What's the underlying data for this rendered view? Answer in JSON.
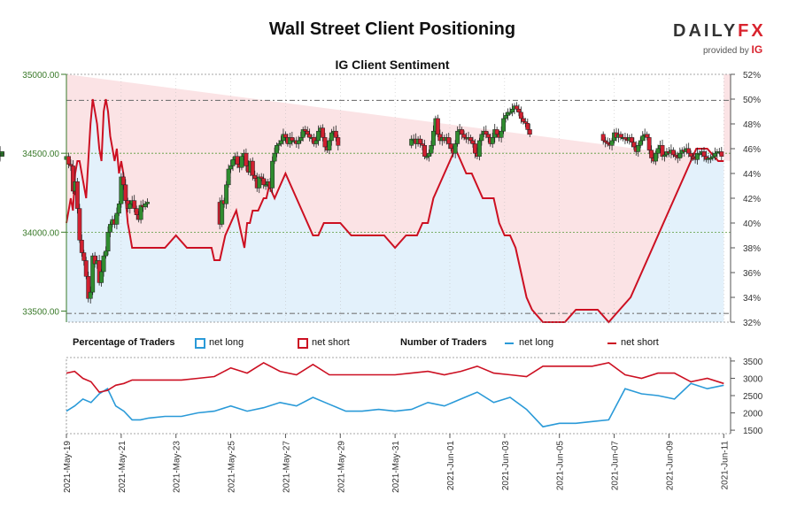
{
  "title": "Wall Street Client Positioning",
  "logo": {
    "brand_main": "DAILY",
    "brand_fx": "FX",
    "provided_by": "provided by",
    "provider": "IG"
  },
  "chart_data": [
    {
      "type": "candlestick",
      "title": "IG Client Sentiment",
      "left_axis": {
        "ticks": [
          33500,
          34000,
          34500,
          35000
        ],
        "tick_labels": [
          "33500.00",
          "34000.00",
          "34500.00",
          "35000.00"
        ],
        "range": [
          33430,
          35000
        ]
      },
      "right_axis": {
        "ticks": [
          32,
          34,
          36,
          38,
          40,
          42,
          44,
          46,
          48,
          50,
          52
        ],
        "tick_labels": [
          "32%",
          "34%",
          "36%",
          "38%",
          "40%",
          "42%",
          "44%",
          "46%",
          "48%",
          "50%",
          "52%"
        ],
        "range": [
          32,
          52
        ]
      },
      "colors": {
        "long_fill": "#e3f1fb",
        "short_fill": "#fbe3e5",
        "up": "#2f8c2f",
        "down": "#d02030",
        "net_short": "#cc1022",
        "net_long": "#2a9ad8"
      },
      "candles_day_positions": [
        0,
        0.08,
        0.16,
        0.24,
        0.32,
        0.4,
        0.48,
        0.56,
        0.64,
        0.72,
        0.8,
        0.88,
        0.96,
        1.04,
        1.12,
        1.2,
        1.28,
        1.36,
        1.44,
        1.52,
        1.6,
        1.68,
        1.76,
        1.84,
        1.92,
        2.0,
        2.08,
        2.16,
        2.24,
        2.32,
        2.4,
        2.48,
        2.56,
        2.64,
        2.72,
        2.8,
        2.88,
        2.96,
        5.6,
        5.68,
        5.76,
        5.84,
        5.92,
        6.0,
        6.08,
        6.16,
        6.24,
        6.32,
        6.4,
        6.48,
        6.56,
        6.64,
        6.72,
        6.8,
        6.88,
        6.96,
        7.04,
        7.12,
        7.2,
        7.28,
        7.36,
        7.44,
        7.52,
        7.6,
        7.68,
        7.76,
        7.84,
        7.92,
        8.0,
        8.08,
        8.16,
        8.24,
        8.32,
        8.4,
        8.48,
        8.56,
        8.64,
        8.72,
        8.8,
        8.88,
        8.96,
        9.04,
        9.12,
        9.2,
        9.28,
        9.36,
        9.44,
        9.52,
        9.6,
        9.68,
        9.76,
        9.84,
        9.92,
        12.6,
        12.68,
        12.76,
        12.84,
        12.92,
        13.0,
        13.08,
        13.16,
        13.24,
        13.32,
        13.4,
        13.48,
        13.56,
        13.64,
        13.72,
        13.8,
        13.88,
        13.96,
        14.04,
        14.12,
        14.2,
        14.28,
        14.36,
        14.44,
        14.52,
        14.6,
        14.68,
        14.76,
        14.84,
        14.92,
        15.0,
        15.08,
        15.16,
        15.24,
        15.32,
        15.4,
        15.48,
        15.56,
        15.64,
        15.72,
        15.8,
        15.88,
        15.96,
        16.04,
        16.12,
        16.2,
        16.28,
        16.36,
        16.44,
        16.52,
        16.6,
        16.68,
        16.76,
        16.84,
        16.92,
        19.6,
        19.68,
        19.76,
        19.84,
        19.92,
        20.0,
        20.08,
        20.16,
        20.24,
        20.32,
        20.4,
        20.48,
        20.56,
        20.64,
        20.72,
        20.8,
        20.88,
        20.96,
        21.04,
        21.12,
        21.2,
        21.28,
        21.36,
        21.44,
        21.52,
        21.6,
        21.68,
        21.76,
        21.84,
        21.92,
        22.0,
        22.08,
        22.16,
        22.24,
        22.32,
        22.4,
        22.48,
        22.56,
        22.64,
        22.72,
        22.8,
        22.88,
        22.96,
        23.04,
        23.12,
        23.2,
        23.28,
        23.36,
        23.44,
        23.52,
        23.6,
        23.68,
        23.76,
        23.84,
        23.92
      ],
      "closes": [
        34480,
        34430,
        34420,
        34260,
        34320,
        34150,
        33950,
        33870,
        33820,
        33720,
        33580,
        33620,
        33850,
        33800,
        33820,
        33680,
        33750,
        33850,
        33880,
        34000,
        34050,
        34080,
        34050,
        34120,
        34180,
        34350,
        34300,
        34200,
        34150,
        34180,
        34200,
        34150,
        34110,
        34080,
        34170,
        34160,
        34180,
        34190,
        34050,
        34200,
        34180,
        34300,
        34400,
        34420,
        34460,
        34480,
        34430,
        34410,
        34480,
        34500,
        34420,
        34380,
        34450,
        34360,
        34340,
        34280,
        34350,
        34340,
        34300,
        34300,
        34320,
        34280,
        34450,
        34500,
        34550,
        34560,
        34580,
        34620,
        34600,
        34560,
        34600,
        34580,
        34580,
        34560,
        34580,
        34600,
        34650,
        34640,
        34620,
        34600,
        34600,
        34560,
        34580,
        34640,
        34660,
        34600,
        34540,
        34520,
        34580,
        34630,
        34640,
        34600,
        34550,
        34590,
        34590,
        34560,
        34590,
        34560,
        34550,
        34480,
        34480,
        34500,
        34550,
        34640,
        34720,
        34620,
        34580,
        34600,
        34580,
        34600,
        34560,
        34530,
        34500,
        34560,
        34640,
        34650,
        34620,
        34600,
        34590,
        34600,
        34580,
        34560,
        34500,
        34480,
        34580,
        34620,
        34640,
        34620,
        34600,
        34560,
        34600,
        34650,
        34620,
        34600,
        34640,
        34720,
        34740,
        34760,
        34760,
        34780,
        34800,
        34780,
        34760,
        34720,
        34700,
        34690,
        34650,
        34620,
        34580,
        34570,
        34560,
        34550,
        34580,
        34630,
        34600,
        34620,
        34600,
        34600,
        34590,
        34580,
        34600,
        34570,
        34540,
        34510,
        34550,
        34580,
        34610,
        34620,
        34600,
        34520,
        34470,
        34450,
        34500,
        34530,
        34550,
        34480,
        34490,
        34510,
        34500,
        34520,
        34490,
        34480,
        34470,
        34500,
        34520,
        34510,
        34530,
        34500,
        34480,
        34470,
        34460,
        34500,
        34500,
        34510,
        34480,
        34460,
        34470,
        34470,
        34480,
        34500,
        34510,
        34510,
        34480,
        34500,
        34480,
        34510,
        34500,
        34500,
        34510,
        34490,
        34500,
        34510
      ],
      "net_short_pct_days": [
        0,
        0.08,
        0.16,
        0.24,
        0.32,
        0.4,
        0.48,
        0.56,
        0.64,
        0.72,
        0.8,
        0.88,
        0.96,
        1.04,
        1.12,
        1.2,
        1.28,
        1.36,
        1.44,
        1.52,
        1.6,
        1.68,
        1.76,
        1.84,
        1.92,
        2.0,
        2.08,
        2.16,
        2.24,
        2.32,
        2.4,
        2.48,
        2.56,
        2.64,
        2.72,
        2.8,
        2.88,
        2.96,
        3.2,
        3.4,
        3.6,
        4.0,
        4.4,
        4.8,
        5.2,
        5.3,
        5.4,
        5.5,
        5.6,
        5.7,
        5.8,
        6.0,
        6.2,
        6.4,
        6.5,
        6.6,
        6.7,
        6.8,
        7.0,
        7.2,
        7.3,
        7.4,
        7.6,
        7.8,
        8.0,
        8.2,
        8.4,
        8.6,
        8.8,
        9.0,
        9.2,
        9.4,
        9.6,
        9.8,
        10.0,
        10.4,
        11.0,
        11.6,
        12.0,
        12.4,
        12.8,
        13.0,
        13.2,
        13.4,
        13.6,
        13.8,
        14.0,
        14.2,
        14.4,
        14.6,
        14.8,
        15.0,
        15.2,
        15.4,
        15.6,
        15.8,
        16.0,
        16.2,
        16.4,
        16.6,
        16.8,
        17.0,
        17.4,
        17.8,
        18.2,
        18.6,
        19.0,
        19.4,
        19.8,
        20.2,
        20.6,
        21.0,
        21.4,
        21.8,
        22.2,
        22.6,
        23.0,
        23.4,
        23.8,
        24.0
      ],
      "net_short_pct": [
        40,
        41,
        42,
        41,
        44,
        45,
        45,
        44,
        43,
        42,
        45,
        48,
        50,
        49,
        48,
        46,
        45,
        49,
        50,
        49,
        47,
        46,
        45,
        46,
        44,
        45,
        44,
        42,
        40,
        39,
        38,
        38,
        38,
        38,
        38,
        38,
        38,
        38,
        38,
        38,
        38,
        39,
        38,
        38,
        38,
        38,
        37,
        37,
        37,
        38,
        39,
        40,
        41,
        39,
        38,
        40,
        40,
        41,
        41,
        42,
        42,
        43,
        42,
        43,
        44,
        43,
        42,
        41,
        40,
        39,
        39,
        40,
        40,
        40,
        40,
        39,
        39,
        39,
        38,
        39,
        39,
        40,
        40,
        42,
        43,
        44,
        45,
        46,
        45,
        44,
        44,
        43,
        42,
        42,
        42,
        40,
        39,
        39,
        38,
        36,
        34,
        33,
        32,
        32,
        32,
        33,
        33,
        33,
        32,
        33,
        34,
        36,
        38,
        40,
        42,
        44,
        46,
        46,
        45,
        45
      ],
      "reference_lines": {
        "upper_price": 34835,
        "lower_price": 33485,
        "mid_gridlines_price": [
          34500,
          34000
        ]
      },
      "x_labels": [
        "2021-May-19",
        "2021-May-21",
        "2021-May-23",
        "2021-May-25",
        "2021-May-27",
        "2021-May-29",
        "2021-May-31",
        "2021-Jun-01",
        "2021-Jun-03",
        "2021-Jun-05",
        "2021-Jun-07",
        "2021-Jun-09",
        "2021-Jun-11"
      ]
    },
    {
      "type": "line",
      "title": "Number of Traders",
      "y_axis": {
        "ticks": [
          1500,
          2000,
          2500,
          3000,
          3500
        ],
        "tick_labels": [
          "1500",
          "2000",
          "2500",
          "3000",
          "3500"
        ],
        "range": [
          1400,
          3600
        ]
      },
      "series": [
        {
          "name": "net long",
          "color": "#2a9ad8",
          "days": [
            0,
            0.3,
            0.6,
            0.9,
            1.2,
            1.5,
            1.8,
            2.1,
            2.4,
            2.7,
            3.0,
            3.6,
            4.2,
            4.8,
            5.4,
            6.0,
            6.6,
            7.2,
            7.8,
            8.4,
            9.0,
            9.6,
            10.2,
            10.8,
            11.4,
            12.0,
            12.6,
            13.2,
            13.8,
            14.4,
            15.0,
            15.6,
            16.2,
            16.8,
            17.4,
            18.0,
            18.6,
            19.2,
            19.8,
            20.4,
            21.0,
            21.6,
            22.2,
            22.8,
            23.4,
            24.0
          ],
          "values": [
            2050,
            2200,
            2400,
            2300,
            2550,
            2700,
            2200,
            2050,
            1800,
            1800,
            1850,
            1900,
            1900,
            2000,
            2050,
            2200,
            2050,
            2150,
            2300,
            2200,
            2450,
            2250,
            2050,
            2050,
            2100,
            2050,
            2100,
            2300,
            2200,
            2400,
            2600,
            2300,
            2450,
            2100,
            1600,
            1700,
            1700,
            1750,
            1800,
            2700,
            2550,
            2500,
            2400,
            2850,
            2700,
            2800
          ]
        },
        {
          "name": "net short",
          "color": "#cc1022",
          "days": [
            0,
            0.3,
            0.6,
            0.9,
            1.2,
            1.5,
            1.8,
            2.1,
            2.4,
            2.7,
            3.0,
            3.6,
            4.2,
            4.8,
            5.4,
            6.0,
            6.6,
            7.2,
            7.8,
            8.4,
            9.0,
            9.6,
            10.2,
            10.8,
            11.4,
            12.0,
            12.6,
            13.2,
            13.8,
            14.4,
            15.0,
            15.6,
            16.2,
            16.8,
            17.4,
            18.0,
            18.6,
            19.2,
            19.8,
            20.4,
            21.0,
            21.6,
            22.2,
            22.8,
            23.4,
            24.0
          ],
          "values": [
            3150,
            3200,
            3000,
            2900,
            2600,
            2650,
            2800,
            2850,
            2950,
            2950,
            2950,
            2950,
            2950,
            3000,
            3050,
            3300,
            3150,
            3450,
            3200,
            3100,
            3400,
            3100,
            3100,
            3100,
            3100,
            3100,
            3150,
            3200,
            3100,
            3200,
            3350,
            3150,
            3100,
            3050,
            3350,
            3350,
            3350,
            3350,
            3450,
            3100,
            3000,
            3150,
            3150,
            2900,
            3000,
            2850
          ]
        }
      ]
    }
  ],
  "legend": {
    "pct_title": "Percentage of Traders",
    "pct_long": "net long",
    "pct_short": "net short",
    "num_title": "Number of Traders",
    "num_long": "net long",
    "num_short": "net short"
  }
}
